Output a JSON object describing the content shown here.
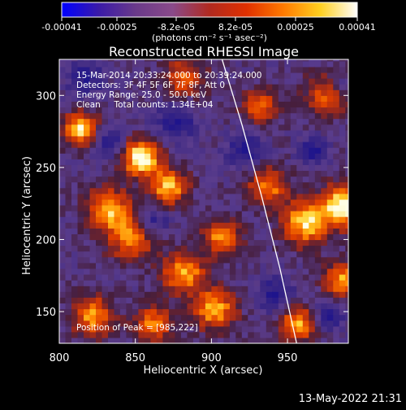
{
  "colorbar": {
    "ticks": [
      "-0.00041",
      "-0.00025",
      "-8.2e-05",
      "8.2e-05",
      "0.00025",
      "0.00041"
    ],
    "unit_label": "(photons cm⁻² s⁻¹ asec⁻²)",
    "range": [
      -0.00041,
      0.00041
    ],
    "colors": [
      "#0000ff",
      "#3a1aa8",
      "#6a3a8a",
      "#8a4a8a",
      "#b02a20",
      "#e03000",
      "#ff7a00",
      "#ffd020",
      "#ffffff"
    ]
  },
  "title": "Reconstructed RHESSI Image",
  "info": {
    "line1": "15-Mar-2014 20:33:24.000 to 20:39:24.000",
    "line2": "Detectors: 3F 4F 5F 6F 7F 8F, Att 0",
    "line3": "Energy Range: 25.0 - 50.0 keV",
    "line4": "Clean     Total counts: 1.34E+04",
    "peak": "Position of Peak = [985,222]"
  },
  "timestamp": "13-May-2022 21:31",
  "chart_data": {
    "type": "heatmap",
    "xlabel": "Heliocentric X (arcsec)",
    "ylabel": "Heliocentric Y (arcsec)",
    "xlim": [
      800,
      990
    ],
    "ylim": [
      128,
      325
    ],
    "x_ticks": [
      "800",
      "850",
      "900",
      "950"
    ],
    "x_tick_values": [
      800,
      850,
      900,
      950
    ],
    "y_ticks": [
      "150",
      "200",
      "250",
      "300"
    ],
    "y_tick_values": [
      150,
      200,
      250,
      300
    ],
    "peak_position": [
      985,
      222
    ],
    "limb_curve": {
      "x": [
        907,
        920,
        933,
        945,
        956
      ],
      "y": [
        325,
        280,
        230,
        180,
        128
      ]
    },
    "hotspots": [
      {
        "x": 852,
        "y": 255,
        "intensity": 1.0,
        "radius": 12
      },
      {
        "x": 812,
        "y": 275,
        "intensity": 0.85,
        "radius": 11
      },
      {
        "x": 830,
        "y": 220,
        "intensity": 0.7,
        "radius": 14
      },
      {
        "x": 845,
        "y": 200,
        "intensity": 0.6,
        "radius": 16
      },
      {
        "x": 870,
        "y": 235,
        "intensity": 0.75,
        "radius": 12
      },
      {
        "x": 880,
        "y": 175,
        "intensity": 0.7,
        "radius": 14
      },
      {
        "x": 905,
        "y": 200,
        "intensity": 0.65,
        "radius": 12
      },
      {
        "x": 900,
        "y": 150,
        "intensity": 0.7,
        "radius": 14
      },
      {
        "x": 935,
        "y": 235,
        "intensity": 0.6,
        "radius": 13
      },
      {
        "x": 960,
        "y": 210,
        "intensity": 0.8,
        "radius": 15
      },
      {
        "x": 985,
        "y": 222,
        "intensity": 0.95,
        "radius": 14
      },
      {
        "x": 975,
        "y": 300,
        "intensity": 0.65,
        "radius": 14
      },
      {
        "x": 985,
        "y": 170,
        "intensity": 0.7,
        "radius": 12
      },
      {
        "x": 820,
        "y": 145,
        "intensity": 0.65,
        "radius": 14
      },
      {
        "x": 860,
        "y": 140,
        "intensity": 0.6,
        "radius": 12
      },
      {
        "x": 880,
        "y": 310,
        "intensity": 0.5,
        "radius": 14
      },
      {
        "x": 955,
        "y": 140,
        "intensity": 0.7,
        "radius": 12
      },
      {
        "x": 930,
        "y": 290,
        "intensity": 0.55,
        "radius": 12
      }
    ],
    "coldspots": [
      {
        "x": 815,
        "y": 310,
        "radius": 12
      },
      {
        "x": 830,
        "y": 265,
        "radius": 10
      },
      {
        "x": 875,
        "y": 280,
        "radius": 14
      },
      {
        "x": 920,
        "y": 260,
        "radius": 12
      },
      {
        "x": 965,
        "y": 260,
        "radius": 10
      },
      {
        "x": 980,
        "y": 305,
        "radius": 10
      },
      {
        "x": 860,
        "y": 210,
        "radius": 10
      },
      {
        "x": 940,
        "y": 160,
        "radius": 12
      },
      {
        "x": 975,
        "y": 145,
        "radius": 10
      }
    ]
  }
}
